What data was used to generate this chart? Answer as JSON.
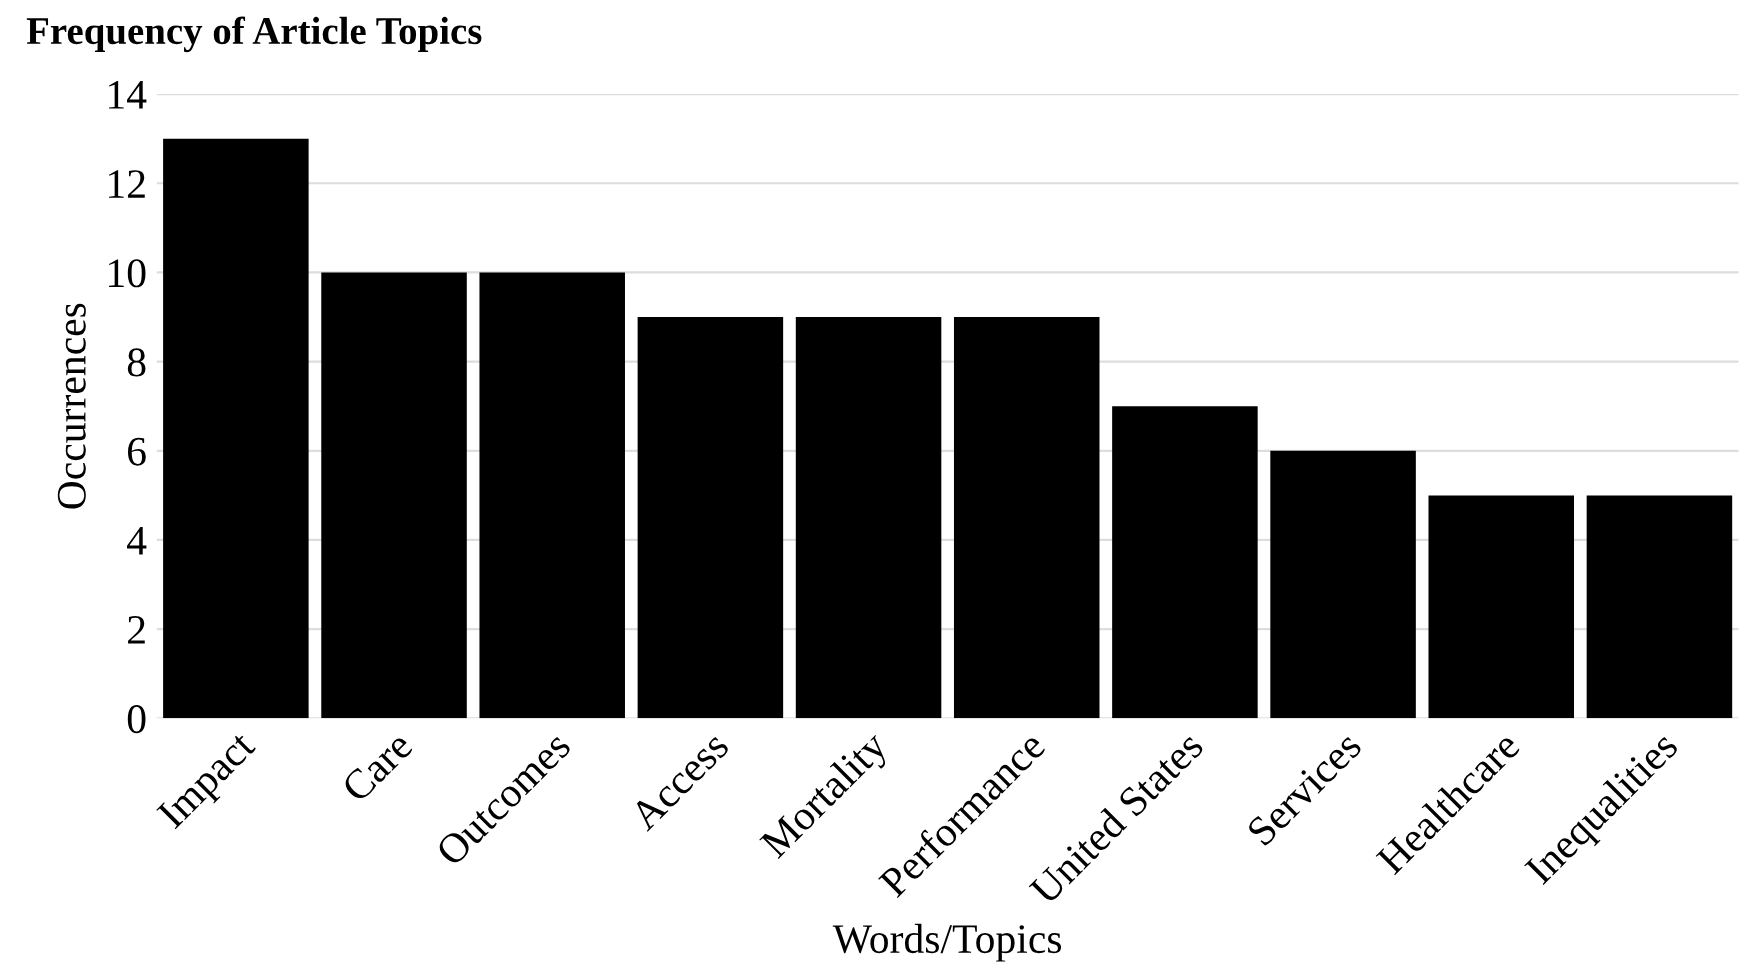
{
  "chart_data": {
    "type": "bar",
    "title": "Frequency of Article Topics",
    "xlabel": "Words/Topics",
    "ylabel": "Occurrences",
    "categories": [
      "Impact",
      "Care",
      "Outcomes",
      "Access",
      "Mortality",
      "Performance",
      "United States",
      "Services",
      "Healthcare",
      "Inequalities"
    ],
    "values": [
      13,
      10,
      10,
      9,
      9,
      9,
      7,
      6,
      5,
      5
    ],
    "color": "#000000",
    "ylim": [
      0,
      14
    ],
    "yticks": [
      0,
      2,
      4,
      6,
      8,
      10,
      12,
      14
    ],
    "grid": "y"
  }
}
